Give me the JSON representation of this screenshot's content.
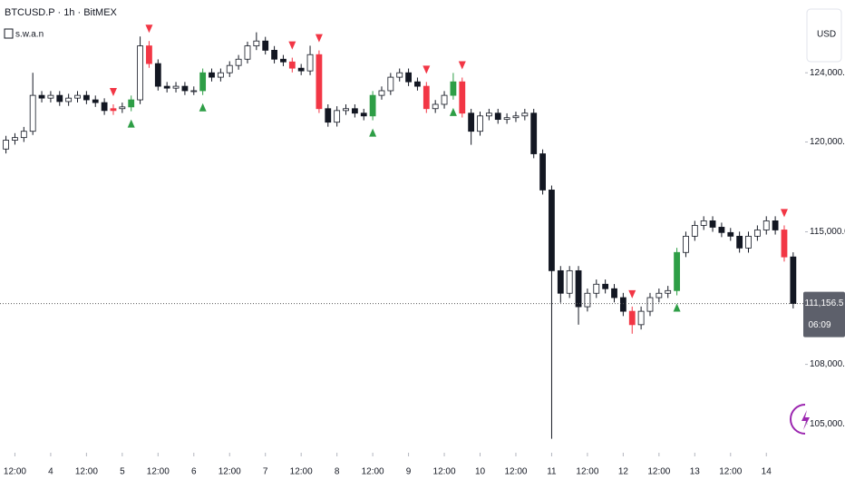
{
  "chart_data": {
    "type": "candlestick",
    "title": "BTCUSD.P · 1h · BitMEX",
    "indicator": "s.w.a.n",
    "currency": "USD",
    "log_scale": true,
    "xlim": [
      7,
      277
    ],
    "ylim": [
      103750,
      128350
    ],
    "x": [
      9,
      12,
      15,
      18,
      21,
      24,
      27,
      30,
      33,
      36,
      39,
      42,
      45,
      48,
      51,
      54,
      57,
      60,
      63,
      66,
      69,
      72,
      75,
      78,
      81,
      84,
      87,
      90,
      93,
      96,
      99,
      102,
      105,
      108,
      111,
      114,
      117,
      120,
      123,
      126,
      129,
      132,
      135,
      138,
      141,
      144,
      147,
      150,
      153,
      156,
      159,
      162,
      165,
      168,
      171,
      174,
      177,
      180,
      183,
      186,
      189,
      192,
      195,
      198,
      201,
      204,
      207,
      210,
      213,
      216,
      219,
      222,
      225,
      228,
      231,
      234,
      237,
      240,
      243,
      246,
      249,
      252,
      255,
      258,
      261,
      264,
      267,
      270,
      273
    ],
    "open": [
      119600,
      120100,
      120250,
      120610,
      122680,
      122520,
      122680,
      122320,
      122520,
      122680,
      122420,
      122260,
      121800,
      121910,
      122010,
      122420,
      125590,
      124540,
      123210,
      123100,
      123210,
      122950,
      122950,
      124000,
      123740,
      124000,
      124430,
      124800,
      125590,
      125880,
      125330,
      124800,
      124640,
      124270,
      124110,
      125070,
      121910,
      121130,
      121800,
      121910,
      121650,
      121490,
      122680,
      122950,
      123740,
      124000,
      123470,
      123210,
      121910,
      122160,
      122680,
      123470,
      121650,
      120610,
      121490,
      121650,
      121290,
      121390,
      121490,
      121650,
      119330,
      117300,
      112900,
      111700,
      112900,
      110990,
      111700,
      112180,
      111940,
      111470,
      110750,
      110050,
      110750,
      111470,
      111700,
      111840,
      113880,
      114760,
      115350,
      115600,
      115250,
      114960,
      114760,
      114120,
      114760,
      115100,
      115600,
      115100,
      113640
    ],
    "high": [
      120350,
      120500,
      120860,
      124000,
      122930,
      122930,
      122930,
      122770,
      122930,
      122930,
      122670,
      122510,
      122160,
      122260,
      122670,
      126150,
      125880,
      124790,
      123460,
      123460,
      123460,
      123200,
      124250,
      124250,
      124250,
      124680,
      125050,
      125840,
      126400,
      126130,
      125580,
      125050,
      124890,
      124520,
      125600,
      125320,
      122160,
      122050,
      122160,
      122160,
      121900,
      122930,
      123200,
      123990,
      124250,
      124250,
      123720,
      123460,
      122410,
      122930,
      123990,
      123720,
      121900,
      121740,
      121900,
      121900,
      121640,
      121740,
      121900,
      121900,
      119580,
      117550,
      113150,
      113150,
      113150,
      111950,
      112430,
      112430,
      112190,
      111720,
      111000,
      111000,
      111720,
      111950,
      112090,
      114130,
      115010,
      115600,
      115850,
      115850,
      115500,
      115210,
      115010,
      115010,
      115350,
      115850,
      115850,
      115350,
      113890
    ],
    "low": [
      119350,
      119850,
      120000,
      120400,
      122270,
      122270,
      122070,
      122070,
      122270,
      122170,
      122010,
      121550,
      121550,
      121660,
      121760,
      122170,
      124290,
      122960,
      122850,
      122850,
      122700,
      122700,
      122700,
      123490,
      123490,
      123750,
      124180,
      124550,
      125340,
      125080,
      124550,
      124390,
      124020,
      123860,
      123860,
      121660,
      120870,
      120880,
      121550,
      121400,
      121240,
      121240,
      122430,
      122700,
      123490,
      123220,
      122960,
      121660,
      121660,
      121910,
      122430,
      121400,
      119840,
      120360,
      121240,
      121040,
      121040,
      121140,
      121240,
      119080,
      117050,
      104260,
      111200,
      111450,
      110050,
      110740,
      111450,
      111690,
      111220,
      110500,
      109580,
      109800,
      110500,
      111220,
      111450,
      111590,
      113630,
      114510,
      115100,
      115000,
      114710,
      114510,
      113870,
      113870,
      114510,
      114850,
      114850,
      113390,
      110900
    ],
    "close": [
      120100,
      120250,
      120610,
      122680,
      122520,
      122680,
      122320,
      122520,
      122680,
      122420,
      122260,
      121800,
      121910,
      122010,
      122420,
      125590,
      124540,
      123210,
      123100,
      123210,
      122950,
      122950,
      124000,
      123740,
      124000,
      124430,
      124800,
      125590,
      125880,
      125330,
      124800,
      124640,
      124270,
      124110,
      125070,
      121910,
      121130,
      121800,
      121910,
      121650,
      121490,
      122680,
      122950,
      123740,
      124000,
      123470,
      123210,
      121910,
      122160,
      122680,
      123470,
      121650,
      120610,
      121490,
      121650,
      121290,
      121390,
      121490,
      121650,
      119330,
      117300,
      112900,
      111700,
      112900,
      110990,
      111700,
      112180,
      111940,
      111470,
      110750,
      110050,
      110750,
      111470,
      111700,
      111840,
      113880,
      114760,
      115350,
      115600,
      115250,
      114960,
      114760,
      114120,
      114760,
      115100,
      115600,
      115100,
      113640,
      111156.5
    ],
    "sell_signals": [
      45,
      57,
      105,
      114,
      150,
      162,
      219,
      270
    ],
    "buy_signals": [
      51,
      75,
      132,
      159,
      234
    ],
    "up_color": "#ffffff",
    "down_color": "#131722",
    "sell_color": "#f23645",
    "buy_color": "#2e9e46",
    "yticks": [
      {
        "value": 105000,
        "label": "105,000.0"
      },
      {
        "value": 108000,
        "label": "108,000.0"
      },
      {
        "value": 115000,
        "label": "115,000.0"
      },
      {
        "value": 120000,
        "label": "120,000.0"
      },
      {
        "value": 124000,
        "label": "124,000.0"
      }
    ],
    "xticks": [
      {
        "value": 12,
        "label": "12:00"
      },
      {
        "value": 24,
        "label": "4"
      },
      {
        "value": 36,
        "label": "12:00"
      },
      {
        "value": 48,
        "label": "5"
      },
      {
        "value": 60,
        "label": "12:00"
      },
      {
        "value": 72,
        "label": "6"
      },
      {
        "value": 84,
        "label": "12:00"
      },
      {
        "value": 96,
        "label": "7"
      },
      {
        "value": 108,
        "label": "12:00"
      },
      {
        "value": 120,
        "label": "8"
      },
      {
        "value": 132,
        "label": "12:00"
      },
      {
        "value": 144,
        "label": "9"
      },
      {
        "value": 156,
        "label": "12:00"
      },
      {
        "value": 168,
        "label": "10"
      },
      {
        "value": 180,
        "label": "12:00"
      },
      {
        "value": 192,
        "label": "11"
      },
      {
        "value": 204,
        "label": "12:00"
      },
      {
        "value": 216,
        "label": "12"
      },
      {
        "value": 228,
        "label": "12:00"
      },
      {
        "value": 240,
        "label": "13"
      },
      {
        "value": 252,
        "label": "12:00"
      },
      {
        "value": 264,
        "label": "14"
      }
    ],
    "last_price": {
      "value": 111156.5,
      "label": "111,156.5"
    },
    "countdown": "06:09"
  }
}
